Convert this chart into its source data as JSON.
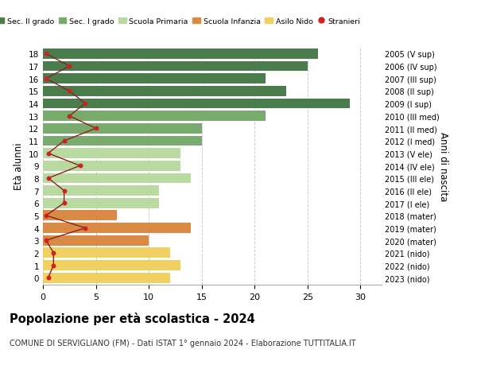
{
  "ages": [
    18,
    17,
    16,
    15,
    14,
    13,
    12,
    11,
    10,
    9,
    8,
    7,
    6,
    5,
    4,
    3,
    2,
    1,
    0
  ],
  "bar_values": [
    26,
    25,
    21,
    23,
    29,
    21,
    15,
    15,
    13,
    13,
    14,
    11,
    11,
    7,
    14,
    10,
    12,
    13,
    12
  ],
  "stranieri": [
    0.3,
    2.5,
    0.3,
    2.5,
    4,
    2.5,
    5,
    2,
    0.5,
    3.5,
    0.5,
    2,
    2,
    0.3,
    4,
    0.3,
    1,
    1,
    0.5
  ],
  "right_labels": [
    "2005 (V sup)",
    "2006 (IV sup)",
    "2007 (III sup)",
    "2008 (II sup)",
    "2009 (I sup)",
    "2010 (III med)",
    "2011 (II med)",
    "2012 (I med)",
    "2013 (V ele)",
    "2014 (IV ele)",
    "2015 (III ele)",
    "2016 (II ele)",
    "2017 (I ele)",
    "2018 (mater)",
    "2019 (mater)",
    "2020 (mater)",
    "2021 (nido)",
    "2022 (nido)",
    "2023 (nido)"
  ],
  "bar_colors": [
    "#4a7c4e",
    "#4a7c4e",
    "#4a7c4e",
    "#4a7c4e",
    "#4a7c4e",
    "#7aab6e",
    "#7aab6e",
    "#7aab6e",
    "#b8d9a0",
    "#b8d9a0",
    "#b8d9a0",
    "#b8d9a0",
    "#b8d9a0",
    "#d98b45",
    "#d98b45",
    "#d98b45",
    "#f0d060",
    "#f0d060",
    "#f0d060"
  ],
  "legend_labels": [
    "Sec. II grado",
    "Sec. I grado",
    "Scuola Primaria",
    "Scuola Infanzia",
    "Asilo Nido",
    "Stranieri"
  ],
  "legend_colors": [
    "#4a7c4e",
    "#7aab6e",
    "#b8d9a0",
    "#d98b45",
    "#f0d060",
    "#cc2222"
  ],
  "title": "Popolazione per età scolastica - 2024",
  "subtitle": "COMUNE DI SERVIGLIANO (FM) - Dati ISTAT 1° gennaio 2024 - Elaborazione TUTTITALIA.IT",
  "ylabel": "Età alunni",
  "ylabel2": "Anni di nascita",
  "xlim": [
    0,
    32
  ],
  "stranieri_color": "#cc2222",
  "line_color": "#8b2020",
  "bg_color": "#ffffff"
}
